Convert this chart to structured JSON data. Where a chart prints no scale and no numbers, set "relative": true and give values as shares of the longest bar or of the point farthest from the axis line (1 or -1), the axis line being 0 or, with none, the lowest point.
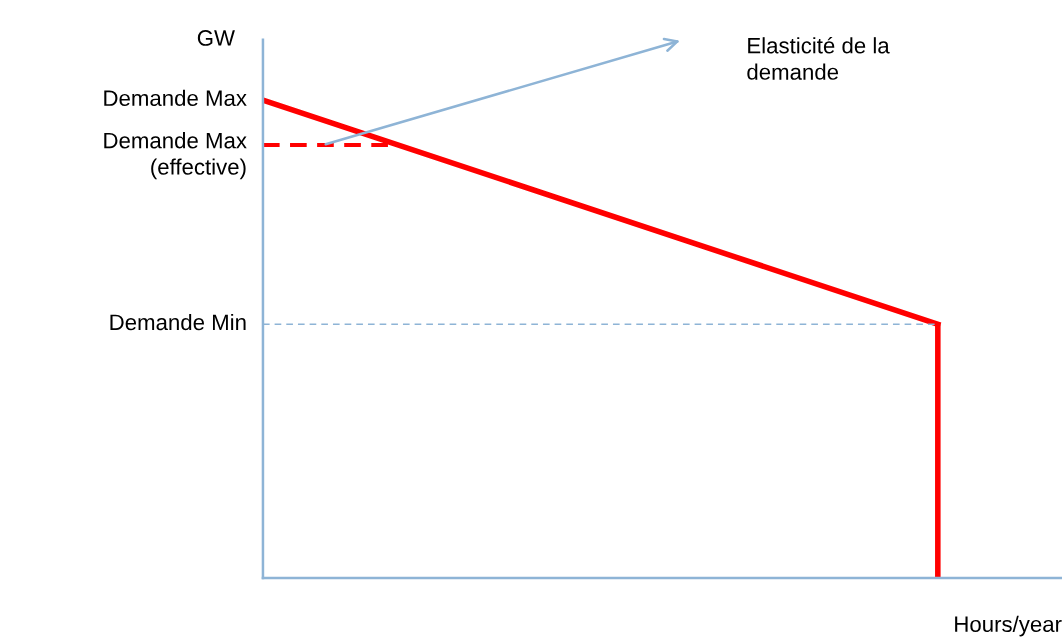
{
  "chart_data": {
    "type": "line",
    "relative": true,
    "ylabel": "GW",
    "xlabel": "Hours/year",
    "categories": [
      null,
      null
    ],
    "series": [
      {
        "color": "#ff0000",
        "values": [
          1,
          0.531
        ]
      }
    ],
    "ref_lines": [
      {
        "axis": "y",
        "value": 0.906,
        "label": "Demande Max\n(effective)",
        "color": "#ff0000",
        "line_style": "dashed"
      },
      {
        "axis": "y",
        "value": 0.531,
        "label": "Demande Min",
        "color": "#8eb4d6",
        "line_style": "dashed"
      }
    ],
    "annotations": [
      "Demande Max",
      "Elasticité de la\ndemande"
    ],
    "legend": false,
    "marker": "none",
    "line_style": "solid"
  }
}
